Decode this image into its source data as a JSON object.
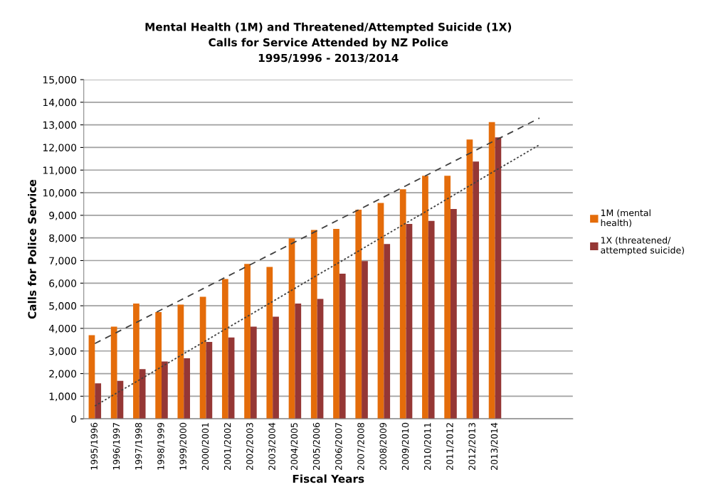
{
  "chart_data": {
    "type": "bar",
    "title": "Mental Health (1M) and Threatened/Attempted Suicide (1X)\nCalls for Service Attended by NZ Police\n1995/1996 - 2013/2014",
    "xlabel": "Fiscal Years",
    "ylabel": "Calls for Police Service",
    "categories": [
      "1995/1996",
      "1996/1997",
      "1997/1998",
      "1998/1999",
      "1999/2000",
      "2000/2001",
      "2001/2002",
      "2002/2003",
      "2003/2004",
      "2004/2005",
      "2005/2006",
      "2006/2007",
      "2007/2008",
      "2008/2009",
      "2009/2010",
      "2010/2011",
      "2011/2012",
      "2012/2013",
      "2013/2014",
      null,
      null,
      null
    ],
    "series": [
      {
        "name": "1M (mental\nhealth)",
        "color": "#e46c0a",
        "values": [
          3700,
          4080,
          5100,
          4720,
          5050,
          5400,
          6180,
          6850,
          6720,
          7980,
          8350,
          8400,
          9250,
          9550,
          10150,
          10750,
          10750,
          12350,
          13120,
          null,
          null,
          null
        ]
      },
      {
        "name": "1X (threatened/\nattempted suicide)",
        "color": "#953735",
        "values": [
          1570,
          1680,
          2200,
          2540,
          2680,
          3400,
          3600,
          4080,
          4520,
          5100,
          5300,
          6420,
          6980,
          7730,
          8620,
          8750,
          9280,
          11380,
          12450,
          null,
          null,
          null
        ]
      },
      {
        "type": "line",
        "color": "#404040",
        "line_style": "dashed",
        "values": [
          3330,
          3830,
          4330,
          4830,
          5320,
          5820,
          6320,
          6820,
          7320,
          7820,
          8320,
          8820,
          9310,
          9810,
          10310,
          10810,
          11310,
          11810,
          12310,
          12800,
          13300,
          null
        ]
      },
      {
        "type": "line",
        "color": "#404040",
        "line_style": "dotted",
        "values": [
          570,
          1150,
          1720,
          2300,
          2880,
          3460,
          4040,
          4610,
          5190,
          5770,
          6350,
          6920,
          7500,
          8080,
          8660,
          9230,
          9810,
          10390,
          10970,
          11540,
          12120,
          null
        ]
      }
    ],
    "ylim": [
      0,
      15000
    ],
    "yticks": [
      {
        "value": 0,
        "label": "0"
      },
      {
        "value": 1000,
        "label": "1,000"
      },
      {
        "value": 2000,
        "label": "2,000"
      },
      {
        "value": 3000,
        "label": "3,000"
      },
      {
        "value": 4000,
        "label": "4,000"
      },
      {
        "value": 5000,
        "label": "5,000"
      },
      {
        "value": 6000,
        "label": "6,000"
      },
      {
        "value": 7000,
        "label": "7,000"
      },
      {
        "value": 8000,
        "label": "8,000"
      },
      {
        "value": 9000,
        "label": "9,000"
      },
      {
        "value": 10000,
        "label": "10,000"
      },
      {
        "value": 11000,
        "label": "11,000"
      },
      {
        "value": 12000,
        "label": "12,000"
      },
      {
        "value": 13000,
        "label": "13,000"
      },
      {
        "value": 14000,
        "label": "14,000"
      },
      {
        "value": 15000,
        "label": "15,000"
      }
    ],
    "grid": "y",
    "legend": "right"
  }
}
